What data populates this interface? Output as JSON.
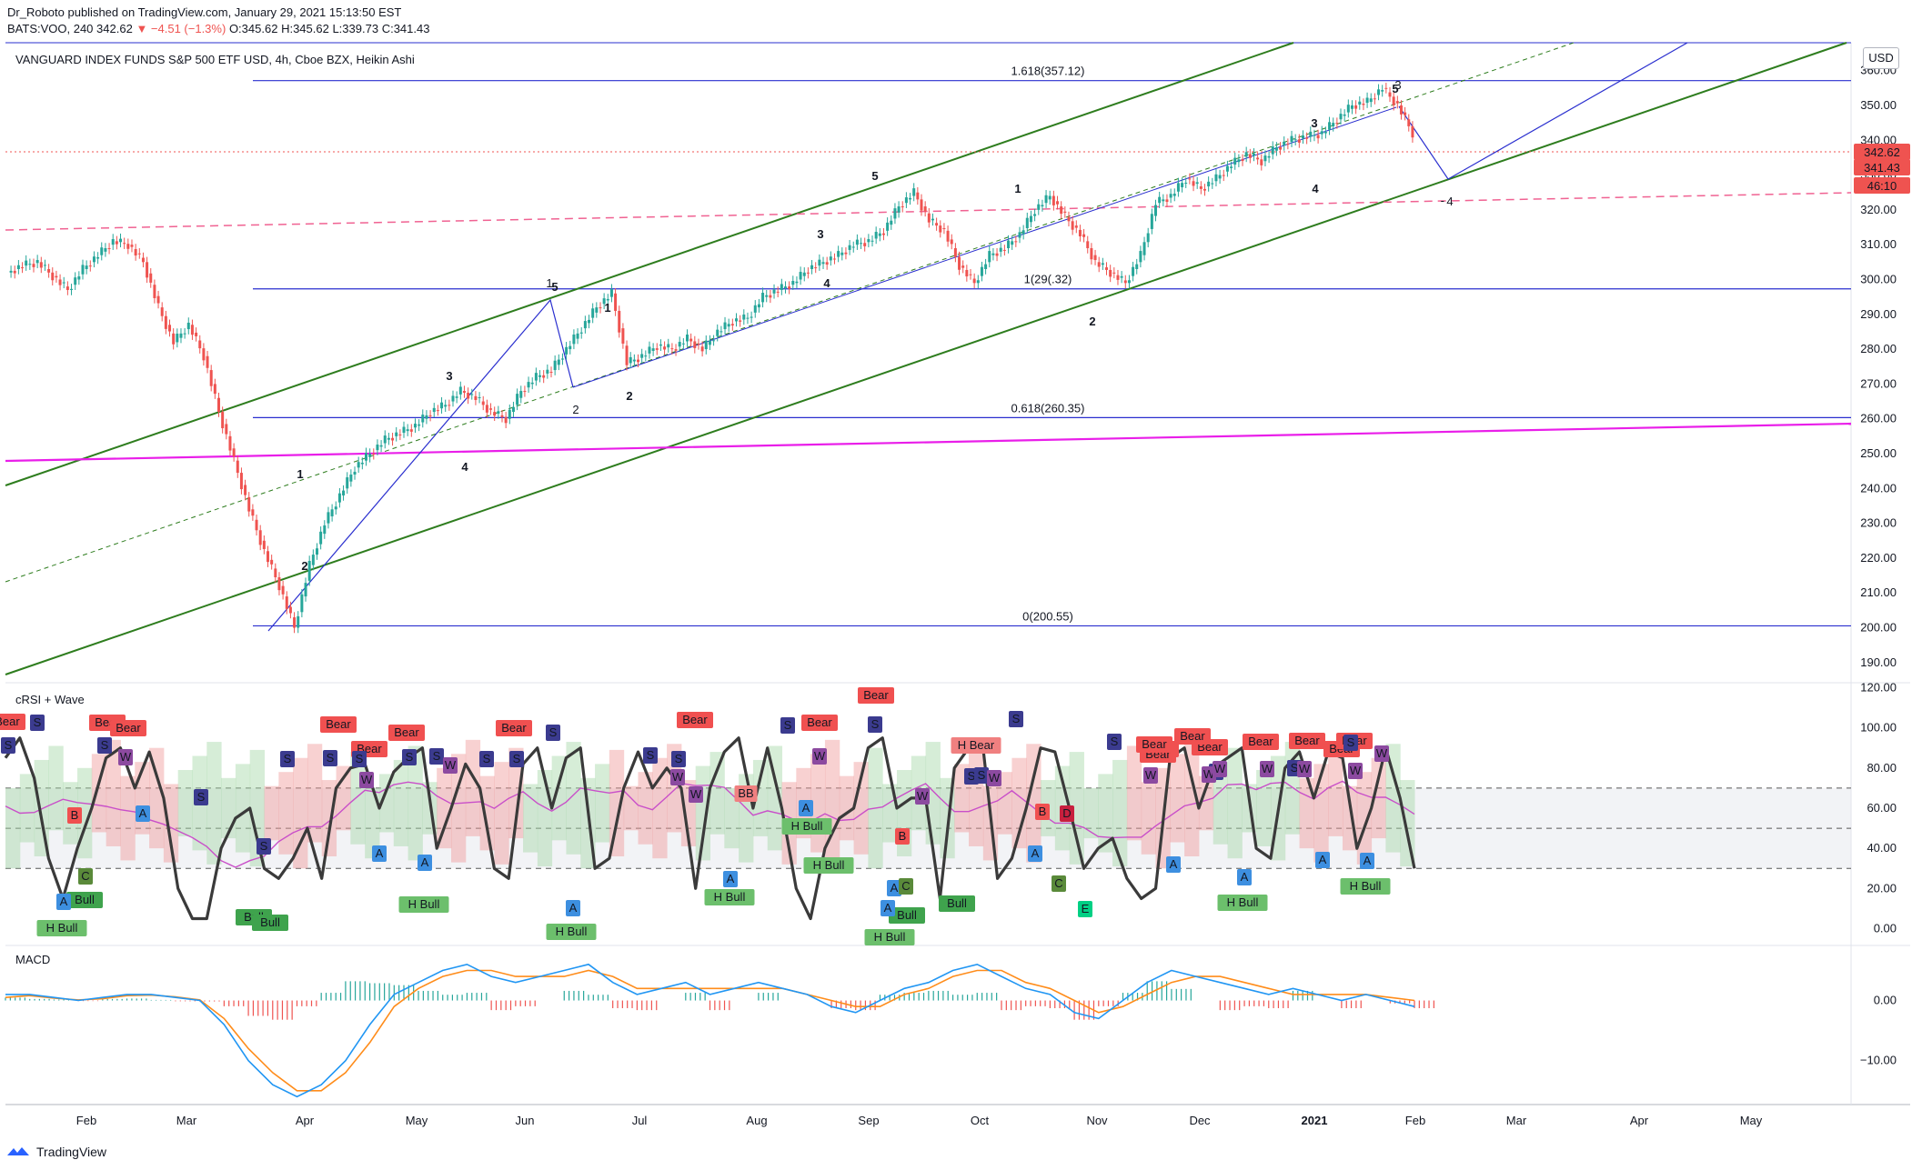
{
  "header": {
    "publisher_line": "Dr_Roboto published on TradingView.com, January 29, 2021 15:13:50 EST",
    "ohlc_symbol": "BATS:VOO, 240",
    "last": "342.62",
    "change": "▼ −4.51 (−1.3%)",
    "open": "O:345.62",
    "high": "H:345.62",
    "low": "L:339.73",
    "close": "C:341.43"
  },
  "main_title": "VANGUARD INDEX FUNDS S&P 500 ETF USD, 4h, Cboe BZX, Heikin Ashi",
  "currency_button": "USD",
  "footer_brand": "TradingView",
  "colors": {
    "up": "#26a69a",
    "down": "#ef5350",
    "fib": "#2a2fcf",
    "channel": "#2e7d1e",
    "magenta": "#e91ee9",
    "pink_dash": "#f06292",
    "price_tag": "#ef5350"
  },
  "chart_data": [
    {
      "type": "line",
      "title": "VANGUARD INDEX FUNDS S&P 500 ETF USD, 4h, Cboe BZX, Heikin Ashi",
      "x_ticks": [
        "Feb",
        "Mar",
        "Apr",
        "May",
        "Jun",
        "Jul",
        "Aug",
        "Sep",
        "Oct",
        "Nov",
        "Dec",
        "2021",
        "Feb",
        "Mar",
        "Apr",
        "May"
      ],
      "y_ticks": [
        190,
        200,
        210,
        220,
        230,
        240,
        250,
        260,
        270,
        280,
        290,
        300,
        310,
        320,
        330,
        340,
        350,
        360
      ],
      "ylim": [
        185,
        368
      ],
      "price_labels": [
        "342.62",
        "341.43",
        "46:10"
      ],
      "series": [
        {
          "values": [
            302,
            304,
            305,
            301,
            297,
            303,
            307,
            311,
            310,
            305,
            292,
            282,
            287,
            278,
            262,
            248,
            234,
            222,
            212,
            200,
            218,
            230,
            238,
            246,
            250,
            254,
            256,
            258,
            262,
            264,
            268,
            266,
            262,
            260,
            268,
            272,
            274,
            280,
            286,
            292,
            296,
            276,
            278,
            281,
            280,
            283,
            280,
            285,
            288,
            289,
            295,
            297,
            299,
            303,
            305,
            307,
            310,
            311,
            314,
            321,
            325,
            317,
            314,
            304,
            299,
            307,
            309,
            313,
            320,
            324,
            318,
            313,
            305,
            302,
            299,
            307,
            322,
            324,
            329,
            326,
            329,
            333,
            336,
            334,
            338,
            340,
            341,
            342,
            346,
            350,
            351,
            355,
            350,
            342
          ]
        }
      ],
      "fib_levels": [
        {
          "label": "1.618(357.12)",
          "value": 357.12
        },
        {
          "label": "1(29(.32)",
          "value": 297.32
        },
        {
          "label": "0.618(260.35)",
          "value": 260.35
        },
        {
          "label": "0(200.55)",
          "value": 200.55
        }
      ],
      "wave_labels": [
        "1",
        "2",
        "3",
        "4",
        "5",
        "1",
        "2",
        "3",
        "4",
        "5",
        "1",
        "2",
        "3",
        "4",
        "5",
        "1",
        "2",
        "3",
        "4",
        "5",
        "2",
        "3",
        "4"
      ]
    },
    {
      "type": "line",
      "title": "cRSI + Wave",
      "y_ticks": [
        0,
        20,
        40,
        60,
        80,
        100,
        120
      ],
      "ylim": [
        -7,
        122
      ],
      "reference_lines": [
        30,
        50,
        70
      ],
      "series": [
        {
          "values": [
            85,
            95,
            75,
            35,
            15,
            40,
            60,
            85,
            90,
            70,
            88,
            65,
            20,
            5,
            5,
            40,
            55,
            60,
            30,
            25,
            35,
            50,
            25,
            70,
            80,
            82,
            60,
            78,
            85,
            90,
            40,
            60,
            82,
            70,
            30,
            25,
            82,
            90,
            60,
            85,
            90,
            30,
            35,
            70,
            88,
            70,
            80,
            70,
            20,
            70,
            88,
            95,
            60,
            90,
            60,
            20,
            5,
            40,
            55,
            60,
            90,
            95,
            60,
            65,
            65,
            15,
            80,
            90,
            90,
            25,
            35,
            60,
            90,
            88,
            60,
            30,
            40,
            45,
            25,
            15,
            20,
            85,
            90,
            60,
            80,
            85,
            90,
            40,
            35,
            80,
            88,
            65,
            88,
            85,
            40,
            60,
            90,
            65,
            30
          ]
        }
      ],
      "markers": [
        "Bear",
        "Bear",
        "Bear",
        "Bear",
        "Bear",
        "Bear",
        "Bear",
        "Bear",
        "Bear",
        "Bear",
        "Bear",
        "Bear",
        "Bear",
        "Bear",
        "Bear",
        "Bear",
        "Bear",
        "Bull",
        "Bull",
        "Bull",
        "Bull",
        "Bull",
        "Bull",
        "H Bull",
        "H Bull",
        "H Bull",
        "H Bull",
        "H Bull",
        "H Bull",
        "H Bull",
        "H Bull",
        "H Bull",
        "H Bear",
        "BB",
        "A",
        "B",
        "C",
        "E",
        "S",
        "W"
      ]
    },
    {
      "type": "line",
      "title": "MACD",
      "y_ticks": [
        "0.00",
        "−10.00"
      ],
      "ylim": [
        -17,
        9
      ],
      "series": [
        {
          "values": [
            1,
            1,
            0.5,
            0,
            0.5,
            1,
            1,
            0.5,
            0,
            -4,
            -10,
            -14,
            -16,
            -14,
            -10,
            -4,
            1,
            3,
            5,
            6,
            4,
            3,
            4,
            5,
            6,
            3,
            1,
            2,
            3,
            1,
            2,
            3,
            2,
            1,
            -1,
            -2,
            0,
            2,
            3,
            5,
            6,
            4,
            2,
            1,
            -2,
            -3,
            0,
            3,
            5,
            4,
            3,
            2,
            1,
            2,
            1,
            0,
            1,
            0,
            -1
          ]
        },
        {
          "values": [
            0.5,
            0.8,
            0.4,
            0.1,
            0.3,
            0.8,
            0.9,
            0.6,
            0.1,
            -3,
            -8,
            -12,
            -15,
            -15,
            -12,
            -7,
            -1,
            2,
            4,
            5,
            5,
            4,
            4,
            4,
            5,
            4,
            2,
            2,
            2,
            2,
            2,
            2,
            2,
            1,
            0,
            -1,
            -1,
            1,
            2,
            4,
            5,
            5,
            3,
            2,
            0,
            -2,
            -1,
            1,
            3,
            4,
            4,
            3,
            2,
            1,
            1,
            1,
            1,
            0.5,
            0
          ]
        }
      ]
    }
  ]
}
